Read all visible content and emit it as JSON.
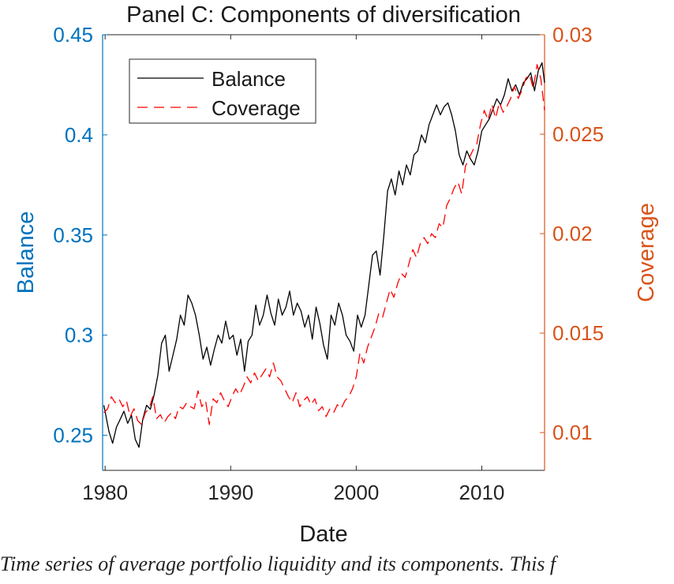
{
  "chart_data": {
    "type": "line",
    "title": "Panel C: Components of diversification",
    "xlabel": "Date",
    "ylabel_left": "Balance",
    "ylabel_right": "Coverage",
    "xlim": [
      1979.8,
      2015.0
    ],
    "ylim_left": [
      0.2325,
      0.45
    ],
    "ylim_right": [
      0.0081,
      0.03
    ],
    "xticks": [
      1980,
      1990,
      2000,
      2010
    ],
    "xtick_labels": [
      "1980",
      "1990",
      "2000",
      "2010"
    ],
    "yticks_left": [
      0.25,
      0.3,
      0.35,
      0.4,
      0.45
    ],
    "ytick_labels_left": [
      "0.25",
      "0.3",
      "0.35",
      "0.4",
      "0.45"
    ],
    "yticks_right": [
      0.01,
      0.015,
      0.02,
      0.025,
      0.03
    ],
    "ytick_labels_right": [
      "0.01",
      "0.015",
      "0.02",
      "0.025",
      "0.03"
    ],
    "legend_position": "top-left",
    "grid": false,
    "colors": {
      "left_axis": "#0072BD",
      "right_axis": "#D95319",
      "balance": "#000000",
      "coverage": "#FF0000"
    },
    "series": [
      {
        "name": "Balance",
        "axis": "left",
        "style": "solid",
        "x": [
          1979.9,
          1980.3,
          1980.6,
          1980.9,
          1981.2,
          1981.5,
          1981.8,
          1982.1,
          1982.4,
          1982.7,
          1983.0,
          1983.3,
          1983.6,
          1983.9,
          1984.2,
          1984.5,
          1984.8,
          1985.1,
          1985.4,
          1985.7,
          1986.0,
          1986.3,
          1986.6,
          1986.9,
          1987.2,
          1987.5,
          1987.8,
          1988.1,
          1988.4,
          1988.7,
          1989.0,
          1989.3,
          1989.6,
          1989.9,
          1990.2,
          1990.5,
          1990.8,
          1991.1,
          1991.4,
          1991.7,
          1992.0,
          1992.3,
          1992.6,
          1992.9,
          1993.2,
          1993.5,
          1993.8,
          1994.1,
          1994.4,
          1994.7,
          1995.0,
          1995.3,
          1995.6,
          1995.9,
          1996.2,
          1996.5,
          1996.8,
          1997.1,
          1997.4,
          1997.7,
          1998.0,
          1998.3,
          1998.6,
          1998.9,
          1999.2,
          1999.5,
          1999.8,
          2000.1,
          2000.4,
          2000.7,
          2001.0,
          2001.3,
          2001.6,
          2001.9,
          2002.2,
          2002.5,
          2002.8,
          2003.1,
          2003.4,
          2003.7,
          2004.0,
          2004.3,
          2004.6,
          2004.9,
          2005.2,
          2005.5,
          2005.8,
          2006.1,
          2006.4,
          2006.7,
          2007.0,
          2007.3,
          2007.6,
          2007.9,
          2008.2,
          2008.5,
          2008.8,
          2009.1,
          2009.4,
          2009.7,
          2010.0,
          2010.3,
          2010.6,
          2010.9,
          2011.2,
          2011.5,
          2011.8,
          2012.1,
          2012.4,
          2012.7,
          2013.0,
          2013.3,
          2013.6,
          2013.9,
          2014.2,
          2014.5,
          2014.8,
          2015.0
        ],
        "y": [
          0.265,
          0.252,
          0.246,
          0.254,
          0.258,
          0.262,
          0.256,
          0.26,
          0.248,
          0.244,
          0.258,
          0.265,
          0.263,
          0.27,
          0.28,
          0.296,
          0.3,
          0.282,
          0.29,
          0.298,
          0.31,
          0.305,
          0.32,
          0.316,
          0.31,
          0.3,
          0.288,
          0.294,
          0.285,
          0.293,
          0.3,
          0.296,
          0.307,
          0.298,
          0.3,
          0.29,
          0.298,
          0.282,
          0.297,
          0.3,
          0.315,
          0.305,
          0.31,
          0.32,
          0.311,
          0.305,
          0.318,
          0.31,
          0.314,
          0.322,
          0.31,
          0.316,
          0.312,
          0.304,
          0.31,
          0.298,
          0.314,
          0.306,
          0.295,
          0.288,
          0.31,
          0.305,
          0.316,
          0.31,
          0.3,
          0.297,
          0.292,
          0.31,
          0.304,
          0.31,
          0.325,
          0.34,
          0.342,
          0.33,
          0.35,
          0.372,
          0.378,
          0.37,
          0.382,
          0.375,
          0.385,
          0.38,
          0.39,
          0.392,
          0.4,
          0.396,
          0.405,
          0.41,
          0.415,
          0.41,
          0.414,
          0.416,
          0.41,
          0.402,
          0.39,
          0.385,
          0.392,
          0.388,
          0.385,
          0.392,
          0.402,
          0.405,
          0.408,
          0.413,
          0.418,
          0.415,
          0.42,
          0.428,
          0.422,
          0.425,
          0.42,
          0.426,
          0.428,
          0.431,
          0.422,
          0.432,
          0.436,
          0.426
        ],
        "note_series_end": ""
      },
      {
        "name": "Coverage",
        "axis": "right",
        "style": "dashed",
        "x": [
          1979.9,
          1980.2,
          1980.5,
          1980.8,
          1981.1,
          1981.4,
          1981.7,
          1982.0,
          1982.3,
          1982.6,
          1982.9,
          1983.2,
          1983.5,
          1983.8,
          1984.1,
          1984.4,
          1984.7,
          1985.0,
          1985.3,
          1985.6,
          1985.9,
          1986.2,
          1986.5,
          1986.8,
          1987.1,
          1987.4,
          1987.7,
          1988.0,
          1988.3,
          1988.6,
          1988.9,
          1989.2,
          1989.5,
          1989.8,
          1990.1,
          1990.4,
          1990.7,
          1991.0,
          1991.3,
          1991.6,
          1991.9,
          1992.2,
          1992.5,
          1992.8,
          1993.1,
          1993.4,
          1993.7,
          1994.0,
          1994.3,
          1994.6,
          1994.9,
          1995.2,
          1995.5,
          1995.8,
          1996.1,
          1996.4,
          1996.7,
          1997.0,
          1997.3,
          1997.6,
          1997.9,
          1998.2,
          1998.5,
          1998.8,
          1999.1,
          1999.4,
          1999.7,
          2000.0,
          2000.3,
          2000.6,
          2000.9,
          2001.2,
          2001.5,
          2001.8,
          2002.1,
          2002.4,
          2002.7,
          2003.0,
          2003.3,
          2003.6,
          2003.9,
          2004.2,
          2004.5,
          2004.8,
          2005.1,
          2005.4,
          2005.7,
          2006.0,
          2006.3,
          2006.6,
          2006.9,
          2007.2,
          2007.5,
          2007.8,
          2008.1,
          2008.4,
          2008.7,
          2009.0,
          2009.3,
          2009.6,
          2009.9,
          2010.2,
          2010.5,
          2010.8,
          2011.1,
          2011.4,
          2011.7,
          2012.0,
          2012.3,
          2012.6,
          2012.9,
          2013.2,
          2013.5,
          2013.8,
          2014.1,
          2014.4,
          2014.7,
          2015.0
        ],
        "y": [
          0.011,
          0.0112,
          0.0118,
          0.0115,
          0.0117,
          0.0113,
          0.0116,
          0.0108,
          0.0112,
          0.0106,
          0.0104,
          0.011,
          0.0112,
          0.0118,
          0.0107,
          0.0109,
          0.0105,
          0.0108,
          0.011,
          0.0107,
          0.0113,
          0.0112,
          0.0115,
          0.0113,
          0.0112,
          0.0121,
          0.0113,
          0.0116,
          0.0104,
          0.0117,
          0.0115,
          0.012,
          0.0116,
          0.0113,
          0.0118,
          0.0122,
          0.0119,
          0.0123,
          0.0128,
          0.0125,
          0.013,
          0.0126,
          0.0129,
          0.0132,
          0.0128,
          0.0135,
          0.0128,
          0.0126,
          0.0122,
          0.0118,
          0.0115,
          0.012,
          0.0113,
          0.0116,
          0.0118,
          0.0114,
          0.0117,
          0.0111,
          0.0113,
          0.0108,
          0.0112,
          0.011,
          0.0114,
          0.0112,
          0.0116,
          0.0118,
          0.0122,
          0.0128,
          0.014,
          0.0135,
          0.0143,
          0.0148,
          0.0153,
          0.016,
          0.0158,
          0.0165,
          0.0172,
          0.0168,
          0.0175,
          0.018,
          0.0178,
          0.0185,
          0.0192,
          0.0188,
          0.0195,
          0.0198,
          0.0195,
          0.02,
          0.0198,
          0.0205,
          0.0203,
          0.0214,
          0.0218,
          0.0223,
          0.0226,
          0.022,
          0.0234,
          0.0238,
          0.0242,
          0.0245,
          0.0255,
          0.0262,
          0.0257,
          0.0265,
          0.0258,
          0.0266,
          0.0261,
          0.0264,
          0.0268,
          0.0274,
          0.0268,
          0.0272,
          0.0278,
          0.028,
          0.0273,
          0.0285,
          0.0278,
          0.0262
        ],
        "note_series_end": ""
      }
    ]
  },
  "caption": {
    "text": "Time series of average portfolio liquidity and its components. This f"
  }
}
